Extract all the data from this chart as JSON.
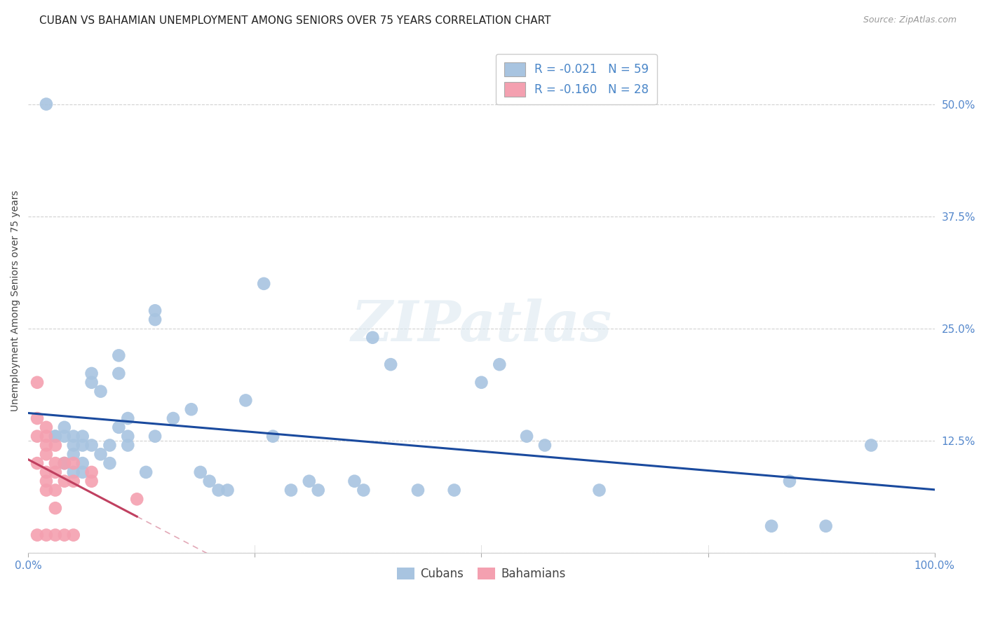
{
  "title": "CUBAN VS BAHAMIAN UNEMPLOYMENT AMONG SENIORS OVER 75 YEARS CORRELATION CHART",
  "source": "Source: ZipAtlas.com",
  "ylabel": "Unemployment Among Seniors over 75 years",
  "xlabel": "",
  "xlim": [
    0,
    1.0
  ],
  "ylim": [
    0,
    0.5625
  ],
  "yticks": [
    0.0,
    0.125,
    0.25,
    0.375,
    0.5
  ],
  "ytick_labels": [
    "",
    "12.5%",
    "25.0%",
    "37.5%",
    "50.0%"
  ],
  "xticks": [
    0.0,
    0.25,
    0.5,
    0.75,
    1.0
  ],
  "xtick_labels": [
    "0.0%",
    "",
    "",
    "",
    "100.0%"
  ],
  "cuban_R": -0.021,
  "cuban_N": 59,
  "bahamian_R": -0.16,
  "bahamian_N": 28,
  "cuban_color": "#a8c4e0",
  "bahamian_color": "#f4a0b0",
  "cuban_line_color": "#1a4a9e",
  "bahamian_line_color": "#c04060",
  "watermark": "ZIPatlas",
  "title_fontsize": 11,
  "axis_label_fontsize": 10,
  "tick_fontsize": 11,
  "legend_fontsize": 12,
  "cuban_x": [
    0.02,
    0.03,
    0.03,
    0.04,
    0.04,
    0.04,
    0.04,
    0.05,
    0.05,
    0.05,
    0.05,
    0.06,
    0.06,
    0.06,
    0.06,
    0.07,
    0.07,
    0.07,
    0.08,
    0.08,
    0.09,
    0.09,
    0.1,
    0.1,
    0.1,
    0.11,
    0.11,
    0.11,
    0.13,
    0.14,
    0.14,
    0.14,
    0.16,
    0.18,
    0.19,
    0.2,
    0.21,
    0.22,
    0.24,
    0.26,
    0.27,
    0.29,
    0.31,
    0.32,
    0.36,
    0.37,
    0.38,
    0.4,
    0.43,
    0.47,
    0.5,
    0.52,
    0.55,
    0.57,
    0.63,
    0.82,
    0.84,
    0.88,
    0.93
  ],
  "cuban_y": [
    0.5,
    0.13,
    0.13,
    0.14,
    0.13,
    0.1,
    0.1,
    0.13,
    0.12,
    0.11,
    0.09,
    0.13,
    0.12,
    0.1,
    0.09,
    0.2,
    0.19,
    0.12,
    0.18,
    0.11,
    0.12,
    0.1,
    0.22,
    0.2,
    0.14,
    0.15,
    0.13,
    0.12,
    0.09,
    0.27,
    0.26,
    0.13,
    0.15,
    0.16,
    0.09,
    0.08,
    0.07,
    0.07,
    0.17,
    0.3,
    0.13,
    0.07,
    0.08,
    0.07,
    0.08,
    0.07,
    0.24,
    0.21,
    0.07,
    0.07,
    0.19,
    0.21,
    0.13,
    0.12,
    0.07,
    0.03,
    0.08,
    0.03,
    0.12
  ],
  "bahamian_x": [
    0.01,
    0.01,
    0.01,
    0.01,
    0.01,
    0.02,
    0.02,
    0.02,
    0.02,
    0.02,
    0.02,
    0.02,
    0.02,
    0.03,
    0.03,
    0.03,
    0.03,
    0.03,
    0.03,
    0.04,
    0.04,
    0.04,
    0.05,
    0.05,
    0.05,
    0.07,
    0.07,
    0.12
  ],
  "bahamian_y": [
    0.19,
    0.15,
    0.13,
    0.1,
    0.02,
    0.14,
    0.13,
    0.12,
    0.11,
    0.09,
    0.08,
    0.07,
    0.02,
    0.12,
    0.1,
    0.09,
    0.07,
    0.05,
    0.02,
    0.1,
    0.08,
    0.02,
    0.1,
    0.08,
    0.02,
    0.09,
    0.08,
    0.06
  ]
}
